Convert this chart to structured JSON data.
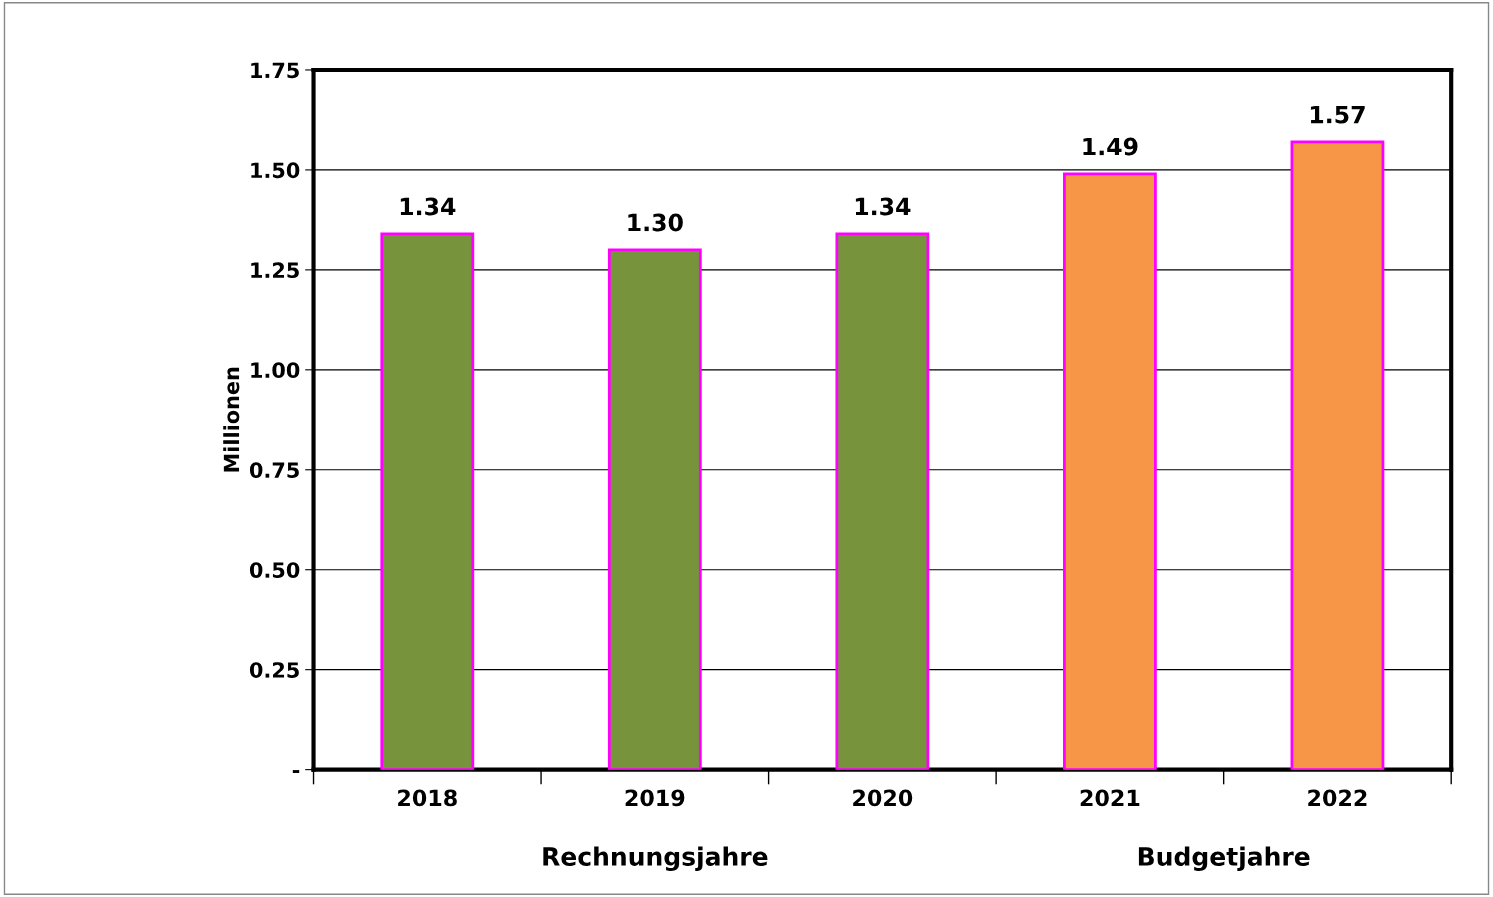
{
  "chart_data": {
    "type": "bar",
    "ylabel": "Millionen",
    "categories": [
      "2018",
      "2019",
      "2020",
      "2021",
      "2022"
    ],
    "values": [
      1.34,
      1.3,
      1.34,
      1.49,
      1.57
    ],
    "value_labels": [
      "1.34",
      "1.30",
      "1.34",
      "1.49",
      "1.57"
    ],
    "colors": [
      "#77933c",
      "#77933c",
      "#77933c",
      "#f79646",
      "#f79646"
    ],
    "ylim": [
      0,
      1.75
    ],
    "yticks": [
      {
        "value": 0,
        "label": "-"
      },
      0.25,
      {
        "value": 0.5,
        "label": "0.50"
      },
      0.75,
      {
        "value": 1,
        "label": "1.00"
      },
      1.25,
      {
        "value": 1.5,
        "label": "1.50"
      },
      1.75
    ],
    "grid": "y",
    "annotations": [
      "Rechnungsjahre",
      "Budgetjahre"
    ]
  }
}
